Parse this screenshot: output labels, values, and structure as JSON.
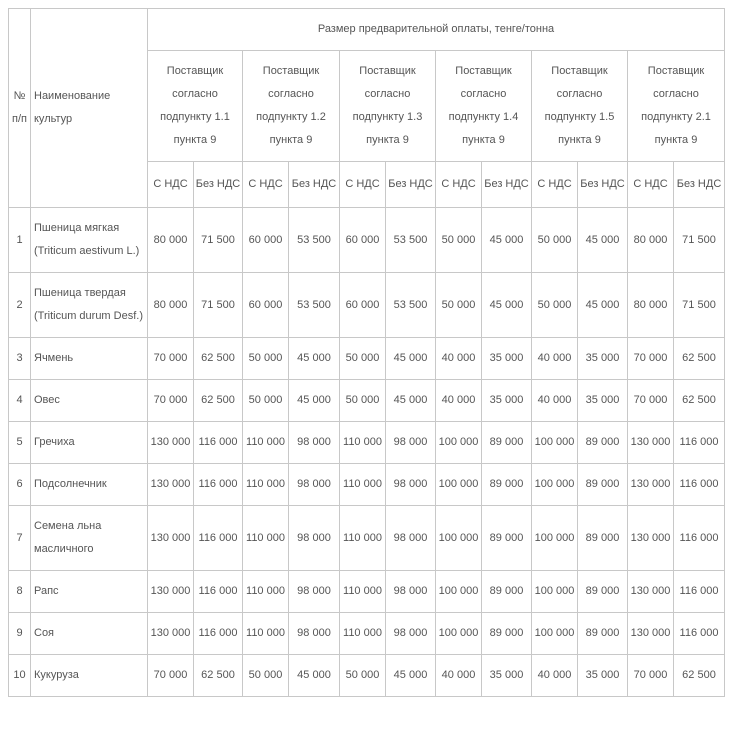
{
  "table": {
    "header": {
      "number": "№ п/п",
      "name": "Наименование культур",
      "group": "Размер предварительной оплаты, тенге/тонна",
      "suppliers": [
        {
          "label": "Поставщик согласно подпункту 1.1 пункта 9",
          "columns": [
            "С НДС",
            "Без НДС"
          ]
        },
        {
          "label": "Поставщик согласно подпункту 1.2 пункта 9",
          "columns": [
            "С НДС",
            "Без НДС"
          ]
        },
        {
          "label": "Поставщик согласно подпункту 1.3 пункта 9",
          "columns": [
            "С НДС",
            "Без НДС"
          ]
        },
        {
          "label": "Поставщик согласно подпункту 1.4 пункта 9",
          "columns": [
            "С НДС",
            "Без НДС"
          ]
        },
        {
          "label": "Поставщик согласно подпункту 1.5 пункта 9",
          "columns": [
            "С НДС",
            "Без НДС"
          ]
        },
        {
          "label": "Поставщик согласно подпункту 2.1 пункта 9",
          "columns": [
            "С НДС",
            "Без НДС"
          ]
        }
      ]
    },
    "rows": [
      {
        "number": "1",
        "name": "Пшеница мягкая (Triticum aestivum L.)",
        "values": [
          "80 000",
          "71 500",
          "60 000",
          "53 500",
          "60 000",
          "53 500",
          "50 000",
          "45 000",
          "50 000",
          "45 000",
          "80 000",
          "71 500"
        ]
      },
      {
        "number": "2",
        "name": "Пшеница твердая (Triticum durum Desf.)",
        "values": [
          "80 000",
          "71 500",
          "60 000",
          "53 500",
          "60 000",
          "53 500",
          "50 000",
          "45 000",
          "50 000",
          "45 000",
          "80 000",
          "71 500"
        ]
      },
      {
        "number": "3",
        "name": "Ячмень",
        "values": [
          "70 000",
          "62 500",
          "50 000",
          "45 000",
          "50 000",
          "45 000",
          "40 000",
          "35 000",
          "40 000",
          "35 000",
          "70 000",
          "62 500"
        ]
      },
      {
        "number": "4",
        "name": "Овес",
        "values": [
          "70 000",
          "62 500",
          "50 000",
          "45 000",
          "50 000",
          "45 000",
          "40 000",
          "35 000",
          "40 000",
          "35 000",
          "70 000",
          "62 500"
        ]
      },
      {
        "number": "5",
        "name": "Гречиха",
        "values": [
          "130 000",
          "116 000",
          "110 000",
          "98 000",
          "110 000",
          "98 000",
          "100 000",
          "89 000",
          "100 000",
          "89 000",
          "130 000",
          "116 000"
        ]
      },
      {
        "number": "6",
        "name": "Подсолнечник",
        "values": [
          "130 000",
          "116 000",
          "110 000",
          "98 000",
          "110 000",
          "98 000",
          "100 000",
          "89 000",
          "100 000",
          "89 000",
          "130 000",
          "116 000"
        ]
      },
      {
        "number": "7",
        "name": "Семена льна масличного",
        "values": [
          "130 000",
          "116 000",
          "110 000",
          "98 000",
          "110 000",
          "98 000",
          "100 000",
          "89 000",
          "100 000",
          "89 000",
          "130 000",
          "116 000"
        ]
      },
      {
        "number": "8",
        "name": "Рапс",
        "values": [
          "130 000",
          "116 000",
          "110 000",
          "98 000",
          "110 000",
          "98 000",
          "100 000",
          "89 000",
          "100 000",
          "89 000",
          "130 000",
          "116 000"
        ]
      },
      {
        "number": "9",
        "name": "Соя",
        "values": [
          "130 000",
          "116 000",
          "110 000",
          "98 000",
          "110 000",
          "98 000",
          "100 000",
          "89 000",
          "100 000",
          "89 000",
          "130 000",
          "116 000"
        ]
      },
      {
        "number": "10",
        "name": "Кукуруза",
        "values": [
          "70 000",
          "62 500",
          "50 000",
          "45 000",
          "50 000",
          "45 000",
          "40 000",
          "35 000",
          "40 000",
          "35 000",
          "70 000",
          "62 500"
        ]
      }
    ]
  }
}
